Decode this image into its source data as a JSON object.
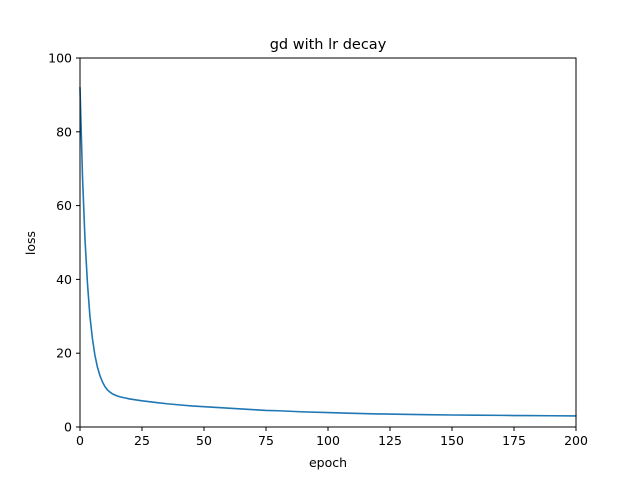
{
  "chart_data": {
    "type": "line",
    "title": "gd with lr decay",
    "xlabel": "epoch",
    "ylabel": "loss",
    "xlim": [
      0,
      200
    ],
    "ylim": [
      0,
      100
    ],
    "xticks": [
      "0",
      "25",
      "50",
      "75",
      "100",
      "125",
      "150",
      "175",
      "200"
    ],
    "yticks": [
      "0",
      "20",
      "40",
      "60",
      "80",
      "100"
    ],
    "grid": false,
    "legend": "none",
    "line_color": "#1f77b4",
    "series": [
      {
        "x": [
          0,
          1,
          2,
          3,
          4,
          5,
          6,
          7,
          8,
          9,
          10,
          11,
          12,
          13,
          14,
          15,
          16,
          18,
          20,
          22,
          25,
          30,
          35,
          40,
          45,
          50,
          60,
          70,
          75,
          80,
          90,
          100,
          110,
          120,
          125,
          130,
          140,
          150,
          160,
          170,
          175,
          180,
          190,
          200
        ],
        "y": [
          92,
          68,
          51,
          39,
          30,
          24,
          19.5,
          16.3,
          14,
          12.3,
          11,
          10.1,
          9.5,
          9,
          8.7,
          8.4,
          8.2,
          7.9,
          7.6,
          7.4,
          7.1,
          6.7,
          6.3,
          6,
          5.7,
          5.5,
          5.1,
          4.7,
          4.5,
          4.4,
          4.1,
          3.9,
          3.7,
          3.55,
          3.5,
          3.45,
          3.35,
          3.25,
          3.2,
          3.15,
          3.1,
          3.1,
          3.05,
          3.0
        ]
      }
    ]
  }
}
